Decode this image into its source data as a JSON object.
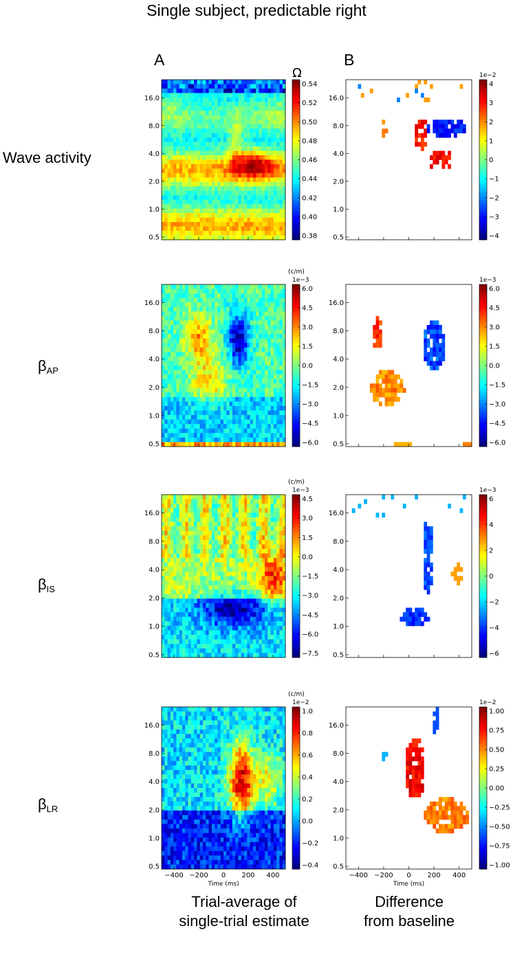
{
  "figure": {
    "title": "Single subject, predictable right",
    "col_a_label": "A",
    "col_b_label": "B",
    "caption_a": [
      "Trial-average of",
      "single-trial estimate"
    ],
    "caption_b": [
      "Difference",
      "from baseline"
    ]
  },
  "rows": [
    {
      "label": "Wave activity",
      "sym": "",
      "sub": ""
    },
    {
      "label": "",
      "sym": "β",
      "sub": "AP"
    },
    {
      "label": "",
      "sym": "β",
      "sub": "IS"
    },
    {
      "label": "",
      "sym": "β",
      "sub": "LR"
    }
  ],
  "chart_data": [
    {
      "type": "heatmap",
      "panel": "A",
      "row": "Wave activity",
      "xlabel": "Time (ms)",
      "ylabel": "",
      "xlim": [
        -500,
        500
      ],
      "xticks": [
        -400,
        -200,
        0,
        200,
        400
      ],
      "yticks": [
        "0.5",
        "1.0",
        "2.0",
        "4.0",
        "8.0",
        "16.0"
      ],
      "colorbar": {
        "title": "Ω",
        "exponent": "",
        "ticks": [
          "0.54",
          "0.52",
          "0.50",
          "0.48",
          "0.46",
          "0.44",
          "0.42",
          "0.40",
          "0.38"
        ]
      }
    },
    {
      "type": "heatmap",
      "panel": "B",
      "row": "Wave activity",
      "xlabel": "Time (ms)",
      "ylabel": "",
      "xlim": [
        -500,
        500
      ],
      "xticks": [
        -400,
        -200,
        0,
        200,
        400
      ],
      "yticks": [
        "0.5",
        "1.0",
        "2.0",
        "4.0",
        "8.0",
        "16.0"
      ],
      "colorbar": {
        "title": "",
        "exponent": "1e−2",
        "ticks": [
          "4",
          "3",
          "2",
          "1",
          "0",
          "−1",
          "−2",
          "−3",
          "−4"
        ]
      }
    },
    {
      "type": "heatmap",
      "panel": "A",
      "row": "βAP",
      "xlabel": "Time (ms)",
      "ylabel": "",
      "xlim": [
        -500,
        500
      ],
      "xticks": [
        -400,
        -200,
        0,
        200,
        400
      ],
      "yticks": [
        "0.5",
        "1.0",
        "2.0",
        "4.0",
        "8.0",
        "16.0"
      ],
      "colorbar": {
        "title": "(c/m)",
        "exponent": "1e−3",
        "ticks": [
          "6.0",
          "4.5",
          "3.0",
          "1.5",
          "0.0",
          "−1.5",
          "−3.0",
          "−4.5",
          "−6.0"
        ]
      }
    },
    {
      "type": "heatmap",
      "panel": "B",
      "row": "βAP",
      "xlabel": "Time (ms)",
      "ylabel": "",
      "xlim": [
        -500,
        500
      ],
      "xticks": [
        -400,
        -200,
        0,
        200,
        400
      ],
      "yticks": [
        "0.5",
        "1.0",
        "2.0",
        "4.0",
        "8.0",
        "16.0"
      ],
      "colorbar": {
        "title": "",
        "exponent": "1e−3",
        "ticks": [
          "6.0",
          "4.5",
          "3.0",
          "1.5",
          "0.0",
          "−1.5",
          "−3.0",
          "−4.5",
          "−6.0"
        ]
      }
    },
    {
      "type": "heatmap",
      "panel": "A",
      "row": "βIS",
      "xlabel": "Time (ms)",
      "ylabel": "",
      "xlim": [
        -500,
        500
      ],
      "xticks": [
        -400,
        -200,
        0,
        200,
        400
      ],
      "yticks": [
        "0.5",
        "1.0",
        "2.0",
        "4.0",
        "8.0",
        "16.0"
      ],
      "colorbar": {
        "title": "(c/m)",
        "exponent": "1e−3",
        "ticks": [
          "4.5",
          "3.0",
          "1.5",
          "0.0",
          "−1.5",
          "−3.0",
          "−4.5",
          "−6.0",
          "−7.5"
        ]
      }
    },
    {
      "type": "heatmap",
      "panel": "B",
      "row": "βIS",
      "xlabel": "Time (ms)",
      "ylabel": "",
      "xlim": [
        -500,
        500
      ],
      "xticks": [
        -400,
        -200,
        0,
        200,
        400
      ],
      "yticks": [
        "0.5",
        "1.0",
        "2.0",
        "4.0",
        "8.0",
        "16.0"
      ],
      "colorbar": {
        "title": "",
        "exponent": "1e−3",
        "ticks": [
          "6",
          "4",
          "2",
          "0",
          "−2",
          "−4",
          "−6"
        ]
      }
    },
    {
      "type": "heatmap",
      "panel": "A",
      "row": "βLR",
      "xlabel": "Time (ms)",
      "ylabel": "",
      "xlim": [
        -500,
        500
      ],
      "xticks": [
        -400,
        -200,
        0,
        200,
        400
      ],
      "yticks": [
        "0.5",
        "1.0",
        "2.0",
        "4.0",
        "8.0",
        "16.0"
      ],
      "colorbar": {
        "title": "(c/m)",
        "exponent": "1e−2",
        "ticks": [
          "1.0",
          "0.8",
          "0.6",
          "0.4",
          "0.2",
          "0.0",
          "−0.2",
          "−0.4"
        ]
      }
    },
    {
      "type": "heatmap",
      "panel": "B",
      "row": "βLR",
      "xlabel": "Time (ms)",
      "ylabel": "",
      "xlim": [
        -500,
        500
      ],
      "xticks": [
        -400,
        -200,
        0,
        200,
        400
      ],
      "yticks": [
        "0.5",
        "1.0",
        "2.0",
        "4.0",
        "8.0",
        "16.0"
      ],
      "colorbar": {
        "title": "",
        "exponent": "1e−2",
        "ticks": [
          "1.00",
          "0.75",
          "0.50",
          "0.25",
          "0.00",
          "−0.25",
          "−0.50",
          "−0.75",
          "−1.00"
        ]
      }
    }
  ]
}
